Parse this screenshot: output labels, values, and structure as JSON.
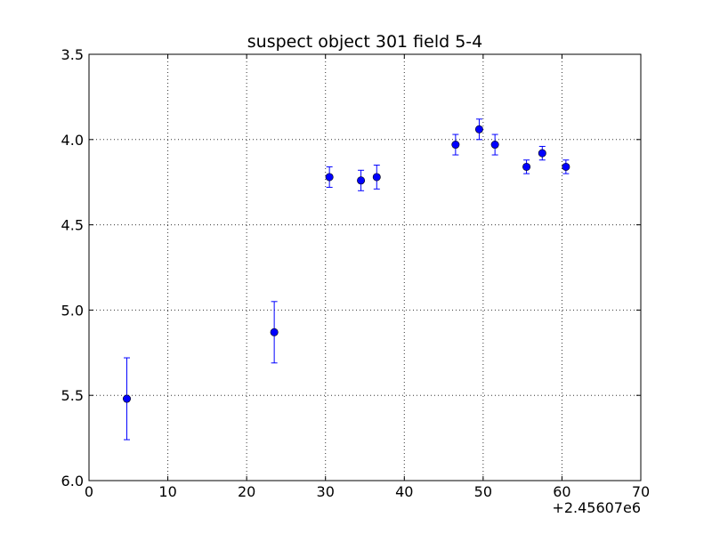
{
  "chart_data": {
    "type": "scatter",
    "title": "suspect object 301 field 5-4",
    "xlabel": "",
    "ylabel": "",
    "x_offset_label": "+2.45607e6",
    "xlim": [
      0,
      70
    ],
    "ylim": [
      3.5,
      6.0
    ],
    "y_inverted": true,
    "grid": true,
    "x_ticks": [
      0,
      10,
      20,
      30,
      40,
      50,
      60,
      70
    ],
    "x_tick_labels": [
      "0",
      "10",
      "20",
      "30",
      "40",
      "50",
      "60",
      "70"
    ],
    "y_ticks": [
      3.5,
      4.0,
      4.5,
      5.0,
      5.5,
      6.0
    ],
    "y_tick_labels": [
      "3.5",
      "4.0",
      "4.5",
      "5.0",
      "5.5",
      "6.0"
    ],
    "series": [
      {
        "color": "#0000ff",
        "marker": "circle",
        "error_bars": true,
        "points": [
          {
            "x": 4.8,
            "y": 5.52,
            "err": 0.24
          },
          {
            "x": 23.5,
            "y": 5.13,
            "err": 0.18
          },
          {
            "x": 30.5,
            "y": 4.22,
            "err": 0.06
          },
          {
            "x": 34.5,
            "y": 4.24,
            "err": 0.06
          },
          {
            "x": 36.5,
            "y": 4.22,
            "err": 0.07
          },
          {
            "x": 46.5,
            "y": 4.03,
            "err": 0.06
          },
          {
            "x": 49.5,
            "y": 3.94,
            "err": 0.06
          },
          {
            "x": 51.5,
            "y": 4.03,
            "err": 0.06
          },
          {
            "x": 55.5,
            "y": 4.16,
            "err": 0.04
          },
          {
            "x": 57.5,
            "y": 4.08,
            "err": 0.04
          },
          {
            "x": 60.5,
            "y": 4.16,
            "err": 0.04
          }
        ]
      }
    ]
  }
}
